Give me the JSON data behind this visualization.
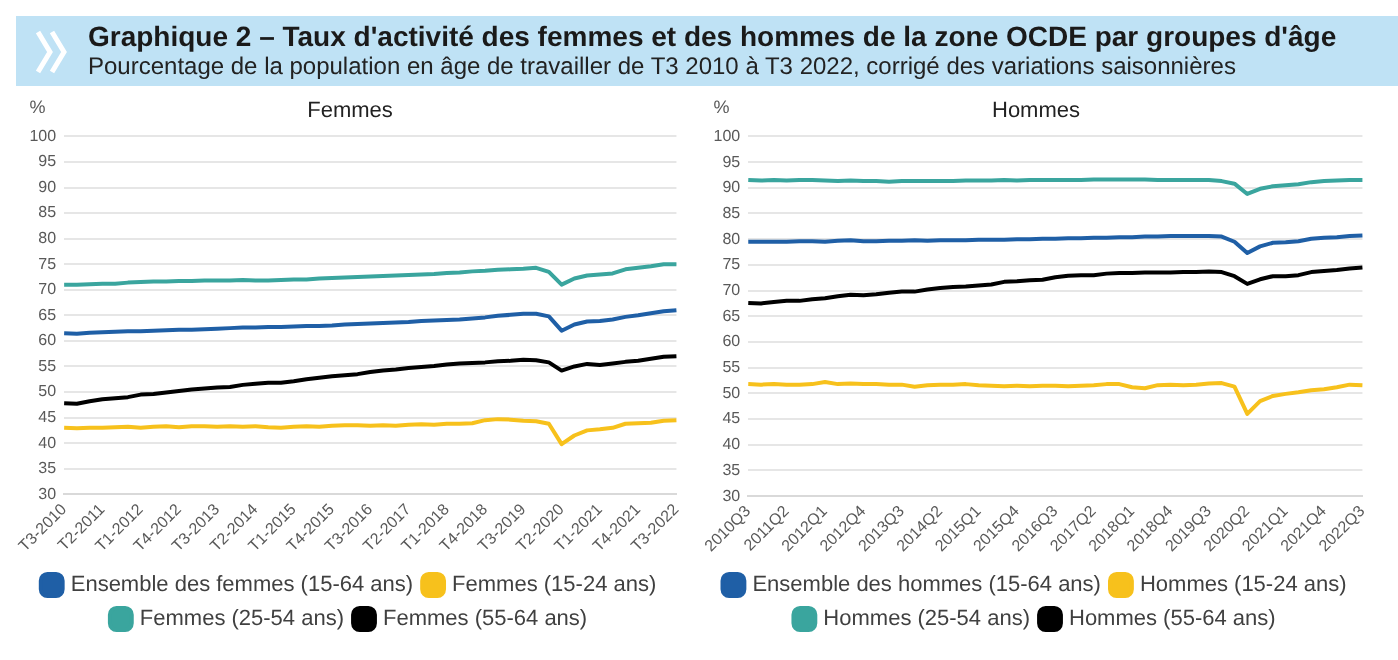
{
  "chart_data": [
    {
      "type": "other",
      "title": "Graphique 2 – Taux d'activité des femmes et des hommes de la zone OCDE par groupes d'âge",
      "subtitle": "Pourcentage de la population en âge de travailler de T3 2010 à T3 2022, corrigé des variations saisonnières"
    },
    {
      "type": "line",
      "title": "Femmes",
      "ylabel": "%",
      "ylim": [
        30,
        100
      ],
      "yticks": [
        30,
        35,
        40,
        45,
        50,
        55,
        60,
        65,
        70,
        75,
        80,
        85,
        90,
        95,
        100
      ],
      "grid": "y",
      "legend": "bottom",
      "marker": "none",
      "categories": [
        "T3-2010",
        null,
        null,
        "T2-2011",
        null,
        null,
        "T1-2012",
        null,
        null,
        "T4-2012",
        null,
        null,
        "T3-2013",
        null,
        null,
        "T2-2014",
        null,
        null,
        "T1-2015",
        null,
        null,
        "T4-2015",
        null,
        null,
        "T3-2016",
        null,
        null,
        "T2-2017",
        null,
        null,
        "T1-2018",
        null,
        null,
        "T4-2018",
        null,
        null,
        "T3-2019",
        null,
        null,
        "T2-2020",
        null,
        null,
        "T1-2021",
        null,
        null,
        "T4-2021",
        null,
        null,
        "T3-2022"
      ],
      "series": [
        {
          "name": "Ensemble des femmes (15-64 ans)",
          "color": "#1f5fa6",
          "values": [
            61.5,
            61.4,
            61.6,
            61.7,
            61.8,
            61.9,
            61.9,
            62.0,
            62.1,
            62.2,
            62.2,
            62.3,
            62.4,
            62.5,
            62.6,
            62.6,
            62.7,
            62.7,
            62.8,
            62.9,
            62.9,
            63.0,
            63.2,
            63.3,
            63.4,
            63.5,
            63.6,
            63.7,
            63.9,
            64.0,
            64.1,
            64.2,
            64.4,
            64.6,
            64.9,
            65.1,
            65.3,
            65.3,
            64.8,
            62.0,
            63.2,
            63.8,
            63.9,
            64.2,
            64.7,
            65.0,
            65.4,
            65.8,
            66.0
          ]
        },
        {
          "name": "Femmes (15-24 ans)",
          "color": "#f7c11c",
          "values": [
            43.0,
            42.9,
            43.0,
            43.0,
            43.1,
            43.2,
            43.0,
            43.2,
            43.3,
            43.1,
            43.3,
            43.3,
            43.2,
            43.3,
            43.2,
            43.3,
            43.1,
            43.0,
            43.2,
            43.3,
            43.2,
            43.4,
            43.5,
            43.5,
            43.4,
            43.5,
            43.4,
            43.6,
            43.7,
            43.6,
            43.8,
            43.8,
            43.9,
            44.5,
            44.7,
            44.6,
            44.4,
            44.3,
            43.8,
            39.8,
            41.5,
            42.5,
            42.7,
            43.0,
            43.8,
            43.9,
            44.0,
            44.4,
            44.5
          ]
        },
        {
          "name": "Femmes (25-54 ans)",
          "color": "#3aa59e",
          "values": [
            71.0,
            71.0,
            71.1,
            71.2,
            71.2,
            71.4,
            71.5,
            71.6,
            71.6,
            71.7,
            71.7,
            71.8,
            71.8,
            71.8,
            71.9,
            71.8,
            71.8,
            71.9,
            72.0,
            72.0,
            72.2,
            72.3,
            72.4,
            72.5,
            72.6,
            72.7,
            72.8,
            72.9,
            73.0,
            73.1,
            73.3,
            73.4,
            73.6,
            73.7,
            73.9,
            74.0,
            74.1,
            74.3,
            73.5,
            71.0,
            72.2,
            72.8,
            73.0,
            73.2,
            74.0,
            74.3,
            74.6,
            75.0,
            75.0
          ]
        },
        {
          "name": "Femmes (55-64 ans)",
          "color": "#000000",
          "values": [
            47.8,
            47.7,
            48.2,
            48.6,
            48.8,
            49.0,
            49.5,
            49.6,
            49.9,
            50.2,
            50.5,
            50.7,
            50.9,
            51.0,
            51.4,
            51.6,
            51.8,
            51.8,
            52.1,
            52.5,
            52.8,
            53.1,
            53.3,
            53.5,
            53.9,
            54.2,
            54.4,
            54.7,
            54.9,
            55.1,
            55.4,
            55.6,
            55.7,
            55.8,
            56.0,
            56.1,
            56.3,
            56.2,
            55.8,
            54.2,
            55.0,
            55.5,
            55.3,
            55.6,
            55.9,
            56.1,
            56.5,
            56.9,
            57.0
          ]
        }
      ]
    },
    {
      "type": "line",
      "title": "Hommes",
      "ylabel": "%",
      "ylim": [
        30,
        100
      ],
      "yticks": [
        30,
        35,
        40,
        45,
        50,
        55,
        60,
        65,
        70,
        75,
        80,
        85,
        90,
        95,
        100
      ],
      "grid": "y",
      "legend": "bottom",
      "marker": "none",
      "categories": [
        "2010Q3",
        null,
        null,
        "2011Q2",
        null,
        null,
        "2012Q1",
        null,
        null,
        "2012Q4",
        null,
        null,
        "2013Q3",
        null,
        null,
        "2014Q2",
        null,
        null,
        "2015Q1",
        null,
        null,
        "2015Q4",
        null,
        null,
        "2016Q3",
        null,
        null,
        "2017Q2",
        null,
        null,
        "2018Q1",
        null,
        null,
        "2018Q4",
        null,
        null,
        "2019Q3",
        null,
        null,
        "2020Q2",
        null,
        null,
        "2021Q1",
        null,
        null,
        "2021Q4",
        null,
        null,
        "2022Q3"
      ],
      "series": [
        {
          "name": "Ensemble des hommes (15-64 ans)",
          "color": "#1f5fa6",
          "values": [
            79.5,
            79.5,
            79.5,
            79.5,
            79.6,
            79.6,
            79.5,
            79.7,
            79.8,
            79.6,
            79.6,
            79.7,
            79.7,
            79.8,
            79.7,
            79.8,
            79.8,
            79.8,
            79.9,
            79.9,
            79.9,
            80.0,
            80.0,
            80.1,
            80.1,
            80.2,
            80.2,
            80.3,
            80.3,
            80.4,
            80.4,
            80.5,
            80.5,
            80.6,
            80.6,
            80.6,
            80.6,
            80.5,
            79.5,
            77.3,
            78.6,
            79.3,
            79.4,
            79.6,
            80.1,
            80.3,
            80.4,
            80.6,
            80.7
          ]
        },
        {
          "name": "Hommes (15-24 ans)",
          "color": "#f7c11c",
          "values": [
            51.8,
            51.7,
            51.8,
            51.7,
            51.7,
            51.8,
            52.2,
            51.8,
            51.9,
            51.8,
            51.8,
            51.7,
            51.7,
            51.3,
            51.6,
            51.7,
            51.7,
            51.8,
            51.6,
            51.5,
            51.4,
            51.5,
            51.4,
            51.5,
            51.5,
            51.4,
            51.5,
            51.6,
            51.8,
            51.8,
            51.2,
            51.0,
            51.6,
            51.7,
            51.6,
            51.7,
            51.9,
            52.0,
            51.3,
            46.0,
            48.5,
            49.5,
            49.9,
            50.2,
            50.6,
            50.8,
            51.2,
            51.7,
            51.6
          ]
        },
        {
          "name": "Hommes (25-54 ans)",
          "color": "#3aa59e",
          "values": [
            91.5,
            91.4,
            91.5,
            91.4,
            91.5,
            91.5,
            91.4,
            91.3,
            91.4,
            91.3,
            91.3,
            91.2,
            91.3,
            91.3,
            91.3,
            91.3,
            91.3,
            91.4,
            91.4,
            91.4,
            91.5,
            91.4,
            91.5,
            91.5,
            91.5,
            91.5,
            91.5,
            91.6,
            91.6,
            91.6,
            91.6,
            91.6,
            91.5,
            91.5,
            91.5,
            91.5,
            91.5,
            91.3,
            90.8,
            88.8,
            89.8,
            90.3,
            90.5,
            90.7,
            91.1,
            91.3,
            91.4,
            91.5,
            91.5
          ]
        },
        {
          "name": "Hommes (55-64 ans)",
          "color": "#000000",
          "values": [
            67.6,
            67.5,
            67.8,
            68.0,
            68.0,
            68.3,
            68.5,
            68.9,
            69.2,
            69.1,
            69.3,
            69.6,
            69.8,
            69.8,
            70.2,
            70.5,
            70.7,
            70.8,
            71.0,
            71.2,
            71.7,
            71.8,
            72.0,
            72.1,
            72.6,
            72.9,
            73.0,
            73.0,
            73.3,
            73.4,
            73.4,
            73.5,
            73.5,
            73.5,
            73.6,
            73.6,
            73.7,
            73.6,
            72.8,
            71.3,
            72.2,
            72.8,
            72.8,
            73.0,
            73.6,
            73.8,
            74.0,
            74.3,
            74.5
          ]
        }
      ]
    }
  ]
}
